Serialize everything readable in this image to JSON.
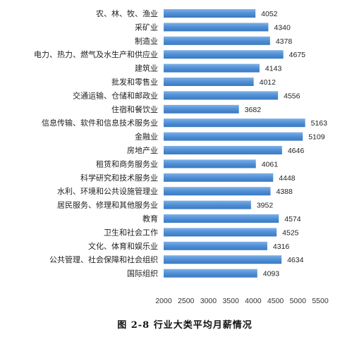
{
  "chart_data": {
    "type": "bar",
    "orientation": "horizontal",
    "caption": "图 2-8  行业大类平均月薪情况",
    "xlim": [
      2000,
      5500
    ],
    "xticks": [
      2000,
      2500,
      3000,
      3500,
      4000,
      4500,
      5000,
      5500
    ],
    "grid": false,
    "bar_color": "#4f8fd6",
    "categories": [
      "农、林、牧、渔业",
      "采矿业",
      "制造业",
      "电力、热力、燃气及水生产和供应业",
      "建筑业",
      "批发和零售业",
      "交通运输、仓储和邮政业",
      "住宿和餐饮业",
      "信息传输、软件和信息技术服务业",
      "金融业",
      "房地产业",
      "租赁和商务服务业",
      "科学研究和技术服务业",
      "水利、环境和公共设施管理业",
      "居民服务、修理和其他服务业",
      "教育",
      "卫生和社会工作",
      "文化、体育和娱乐业",
      "公共管理、社会保障和社会组织",
      "国际组织"
    ],
    "values": [
      4052,
      4340,
      4378,
      4675,
      4143,
      4012,
      4556,
      3682,
      5163,
      5109,
      4646,
      4061,
      4448,
      4388,
      3952,
      4574,
      4525,
      4316,
      4634,
      4093
    ]
  }
}
